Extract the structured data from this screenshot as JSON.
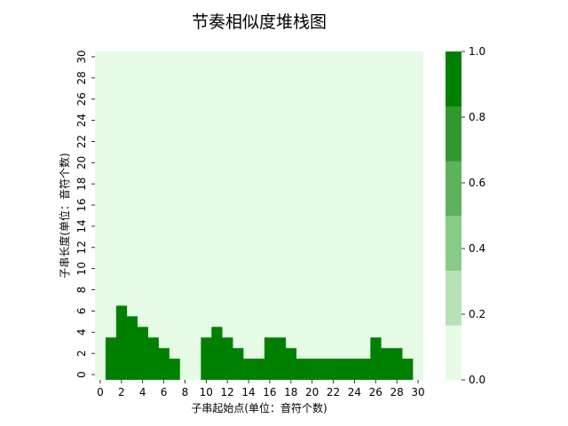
{
  "chart_data": {
    "type": "heatmap",
    "title": "节奏相似度堆栈图",
    "xlabel": "子串起始点(单位：音符个数)",
    "ylabel": "子串长度(单位：音符个数)",
    "x_range": [
      0,
      30
    ],
    "y_range": [
      0,
      30
    ],
    "x_ticks": [
      "0",
      "2",
      "4",
      "6",
      "8",
      "10",
      "12",
      "14",
      "16",
      "18",
      "20",
      "22",
      "24",
      "26",
      "28",
      "30"
    ],
    "y_ticks": [
      "0",
      "2",
      "4",
      "6",
      "8",
      "10",
      "12",
      "14",
      "16",
      "18",
      "20",
      "22",
      "24",
      "26",
      "28",
      "30"
    ],
    "column_heights": [
      0,
      3,
      6,
      5,
      4,
      3,
      2,
      1,
      0,
      0,
      3,
      4,
      3,
      2,
      1,
      1,
      3,
      3,
      2,
      1,
      1,
      1,
      1,
      1,
      1,
      1,
      3,
      2,
      2,
      1,
      0
    ],
    "colorbar": {
      "range": [
        0,
        1
      ],
      "ticks": [
        "0.0",
        "0.2",
        "0.4",
        "0.6",
        "0.8",
        "1.0"
      ],
      "colors": [
        "#e5fbe5",
        "#b6e2b6",
        "#88ca88",
        "#5db25d",
        "#2f992f",
        "#008000"
      ]
    },
    "cell_value_filled": 1.0,
    "cell_value_empty": 0.0
  }
}
